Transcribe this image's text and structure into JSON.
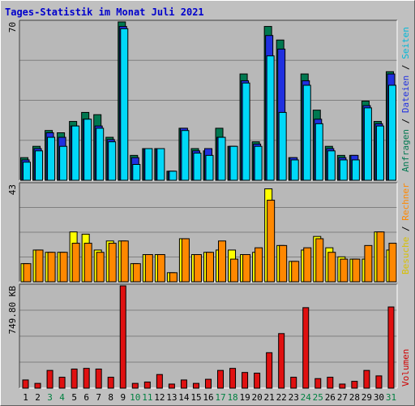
{
  "title": "Tages-Statistik im Monat Juli 2021",
  "colors": {
    "background": "#c0c0c0",
    "panel": "#b8b8b8",
    "title": "#0000cc",
    "anfragen": "#007850",
    "dateien": "#2030e0",
    "seiten": "#00d8f8",
    "besuche": "#ffff00",
    "rechner": "#ff8800",
    "volumen": "#e01010",
    "weekend_day": "#008040",
    "weekday": "#000000"
  },
  "right_legend": {
    "top": [
      {
        "text": "Anfragen",
        "color": "#007850"
      },
      {
        "text": "Dateien",
        "color": "#2030e0"
      },
      {
        "text": "Seiten",
        "color": "#00b8d8"
      }
    ],
    "mid": [
      {
        "text": "Besuche",
        "color": "#d8c000"
      },
      {
        "text": "Rechner",
        "color": "#ff8800"
      }
    ],
    "bottom": [
      {
        "text": "Volumen",
        "color": "#d00000"
      }
    ]
  },
  "chart_data": [
    {
      "type": "bar",
      "name": "top",
      "scale_label": "70",
      "ylim": [
        0,
        70
      ],
      "categories": [
        "1",
        "2",
        "3",
        "4",
        "5",
        "6",
        "7",
        "8",
        "9",
        "10",
        "11",
        "12",
        "13",
        "14",
        "15",
        "16",
        "17",
        "18",
        "19",
        "20",
        "21",
        "22",
        "23",
        "24",
        "25",
        "26",
        "27",
        "28",
        "29",
        "30",
        "31"
      ],
      "weekend": [
        3,
        4,
        10,
        11,
        17,
        18,
        24,
        25,
        31
      ],
      "series": [
        {
          "name": "Anfragen",
          "values": [
            10,
            15,
            22,
            21,
            26,
            30,
            29,
            19,
            70,
            11,
            14,
            14,
            4,
            23,
            14,
            13,
            23,
            15,
            47,
            17,
            68,
            62,
            10,
            47,
            31,
            15,
            11,
            11,
            35,
            26,
            48
          ]
        },
        {
          "name": "Dateien",
          "values": [
            9,
            14,
            21,
            19,
            24,
            27,
            24,
            18,
            68,
            10,
            14,
            14,
            4,
            23,
            13,
            14,
            19,
            15,
            44,
            16,
            64,
            58,
            10,
            44,
            27,
            14,
            10,
            11,
            33,
            25,
            47
          ]
        },
        {
          "name": "Seiten",
          "values": [
            8,
            13,
            19,
            15,
            24,
            27,
            23,
            17,
            67,
            7,
            14,
            14,
            4,
            22,
            12,
            11,
            19,
            15,
            43,
            15,
            55,
            30,
            9,
            42,
            25,
            13,
            9,
            9,
            32,
            24,
            42
          ]
        }
      ]
    },
    {
      "type": "bar",
      "name": "middle",
      "scale_label": "43",
      "ylim": [
        0,
        43
      ],
      "series": [
        {
          "name": "Besuche",
          "values": [
            8,
            14,
            13,
            13,
            22,
            21,
            14,
            18,
            18,
            8,
            12,
            12,
            4,
            19,
            12,
            13,
            14,
            14,
            12,
            13,
            41,
            16,
            9,
            14,
            20,
            15,
            11,
            10,
            10,
            22,
            14
          ]
        },
        {
          "name": "Rechner",
          "values": [
            8,
            14,
            13,
            13,
            17,
            17,
            13,
            17,
            18,
            8,
            12,
            12,
            4,
            19,
            12,
            13,
            18,
            10,
            12,
            15,
            36,
            16,
            9,
            15,
            19,
            13,
            10,
            10,
            16,
            22,
            17
          ]
        }
      ]
    },
    {
      "type": "bar",
      "name": "bottom",
      "scale_label": "749.80 KB",
      "ylim": [
        0,
        749.8
      ],
      "series": [
        {
          "name": "Volumen",
          "values": [
            60,
            35,
            130,
            80,
            140,
            145,
            140,
            80,
            749.8,
            35,
            45,
            100,
            30,
            60,
            35,
            65,
            130,
            145,
            115,
            110,
            260,
            400,
            80,
            590,
            70,
            80,
            30,
            50,
            130,
            90,
            595
          ]
        }
      ]
    }
  ]
}
